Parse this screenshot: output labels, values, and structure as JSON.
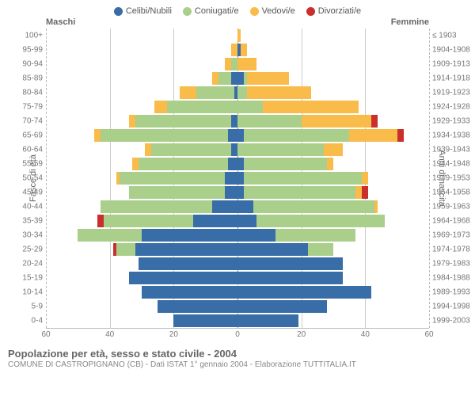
{
  "legend": [
    {
      "label": "Celibi/Nubili",
      "color": "#386da7"
    },
    {
      "label": "Coniugati/e",
      "color": "#a9cf8b"
    },
    {
      "label": "Vedovi/e",
      "color": "#f9bb4a"
    },
    {
      "label": "Divorziati/e",
      "color": "#c9302c"
    }
  ],
  "headers": {
    "left": "Maschi",
    "right": "Femmine"
  },
  "axis_titles": {
    "left": "Fasce di età",
    "right": "Anni di nascita"
  },
  "xmax": 60,
  "xticks": [
    60,
    40,
    20,
    0,
    20,
    40,
    60
  ],
  "age_labels": [
    "100+",
    "95-99",
    "90-94",
    "85-89",
    "80-84",
    "75-79",
    "70-74",
    "65-69",
    "60-64",
    "55-59",
    "50-54",
    "45-49",
    "40-44",
    "35-39",
    "30-34",
    "25-29",
    "20-24",
    "15-19",
    "10-14",
    "5-9",
    "0-4"
  ],
  "birth_labels": [
    "≤ 1903",
    "1904-1908",
    "1909-1913",
    "1914-1918",
    "1919-1923",
    "1924-1928",
    "1929-1933",
    "1934-1938",
    "1939-1943",
    "1944-1948",
    "1949-1953",
    "1954-1958",
    "1959-1963",
    "1964-1968",
    "1969-1973",
    "1974-1978",
    "1979-1983",
    "1984-1988",
    "1989-1993",
    "1994-1998",
    "1999-2003"
  ],
  "rows": [
    {
      "m": [
        0,
        0,
        0,
        0
      ],
      "f": [
        0,
        0,
        1,
        0
      ]
    },
    {
      "m": [
        0,
        0,
        2,
        0
      ],
      "f": [
        1,
        0,
        2,
        0
      ]
    },
    {
      "m": [
        0,
        2,
        2,
        0
      ],
      "f": [
        0,
        0,
        6,
        0
      ]
    },
    {
      "m": [
        2,
        4,
        2,
        0
      ],
      "f": [
        2,
        1,
        13,
        0
      ]
    },
    {
      "m": [
        1,
        12,
        5,
        0
      ],
      "f": [
        0,
        3,
        20,
        0
      ]
    },
    {
      "m": [
        0,
        22,
        4,
        0
      ],
      "f": [
        0,
        8,
        30,
        0
      ]
    },
    {
      "m": [
        2,
        30,
        2,
        0
      ],
      "f": [
        0,
        20,
        22,
        2
      ]
    },
    {
      "m": [
        3,
        40,
        2,
        0
      ],
      "f": [
        2,
        33,
        15,
        2
      ]
    },
    {
      "m": [
        2,
        25,
        2,
        0
      ],
      "f": [
        0,
        27,
        6,
        0
      ]
    },
    {
      "m": [
        3,
        28,
        2,
        0
      ],
      "f": [
        2,
        26,
        2,
        0
      ]
    },
    {
      "m": [
        4,
        33,
        1,
        0
      ],
      "f": [
        2,
        37,
        2,
        0
      ]
    },
    {
      "m": [
        4,
        30,
        0,
        0
      ],
      "f": [
        2,
        35,
        2,
        2
      ]
    },
    {
      "m": [
        8,
        35,
        0,
        0
      ],
      "f": [
        5,
        38,
        1,
        0
      ]
    },
    {
      "m": [
        14,
        28,
        0,
        2
      ],
      "f": [
        6,
        40,
        0,
        0
      ]
    },
    {
      "m": [
        30,
        20,
        0,
        0
      ],
      "f": [
        12,
        25,
        0,
        0
      ]
    },
    {
      "m": [
        32,
        6,
        0,
        1
      ],
      "f": [
        22,
        8,
        0,
        0
      ]
    },
    {
      "m": [
        31,
        0,
        0,
        0
      ],
      "f": [
        33,
        0,
        0,
        0
      ]
    },
    {
      "m": [
        34,
        0,
        0,
        0
      ],
      "f": [
        33,
        0,
        0,
        0
      ]
    },
    {
      "m": [
        30,
        0,
        0,
        0
      ],
      "f": [
        42,
        0,
        0,
        0
      ]
    },
    {
      "m": [
        25,
        0,
        0,
        0
      ],
      "f": [
        28,
        0,
        0,
        0
      ]
    },
    {
      "m": [
        20,
        0,
        0,
        0
      ],
      "f": [
        19,
        0,
        0,
        0
      ]
    }
  ],
  "bar_order_colors": [
    "#386da7",
    "#a9cf8b",
    "#f9bb4a",
    "#c9302c"
  ],
  "grid_positions_pct": [
    0,
    16.67,
    33.33,
    50,
    66.67,
    83.33,
    100
  ],
  "background_color": "#ffffff",
  "title": "Popolazione per età, sesso e stato civile - 2004",
  "subtitle": "COMUNE DI CASTROPIGNANO (CB) - Dati ISTAT 1° gennaio 2004 - Elaborazione TUTTITALIA.IT"
}
